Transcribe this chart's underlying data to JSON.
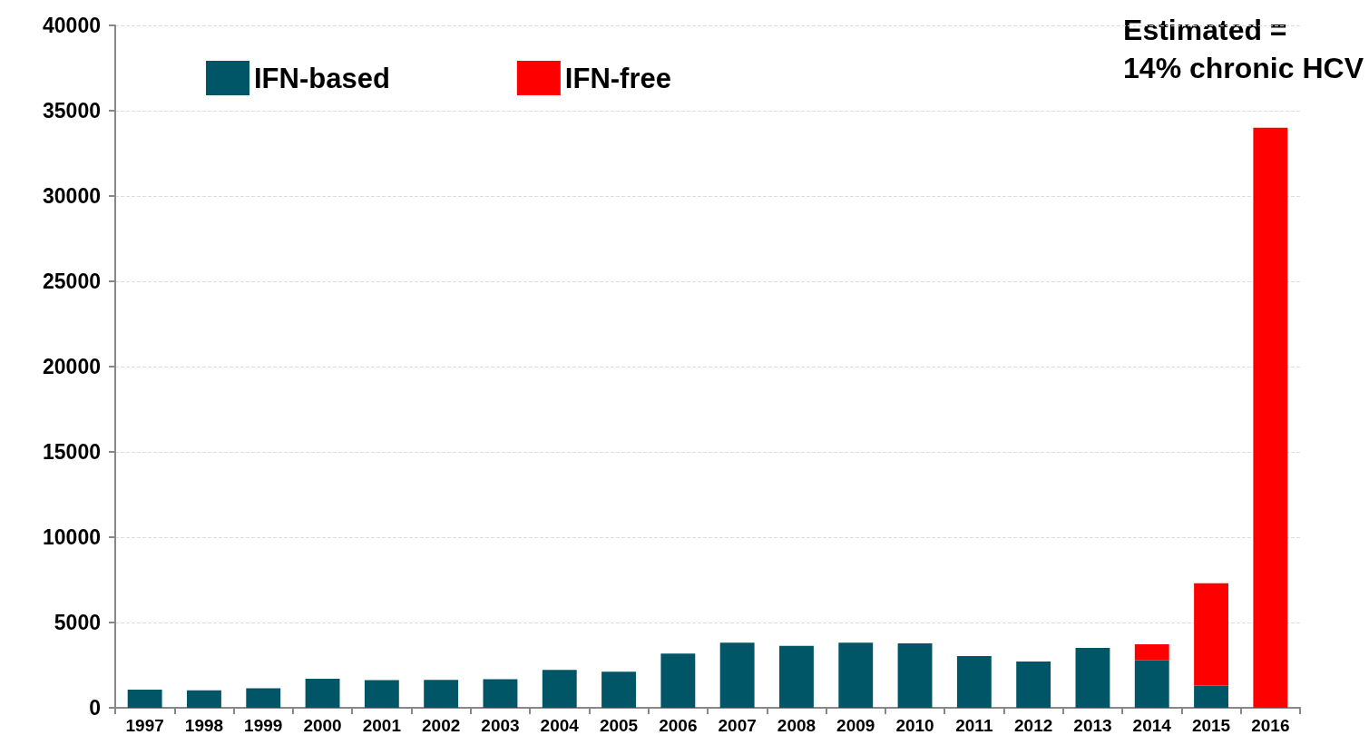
{
  "chart_data": {
    "type": "bar",
    "stacked": true,
    "categories": [
      "1997",
      "1998",
      "1999",
      "2000",
      "2001",
      "2002",
      "2003",
      "2004",
      "2005",
      "2006",
      "2007",
      "2008",
      "2009",
      "2010",
      "2011",
      "2012",
      "2013",
      "2014",
      "2015",
      "2016"
    ],
    "series": [
      {
        "name": "IFN-based",
        "color": "#005566",
        "values": [
          1070,
          1020,
          1140,
          1700,
          1620,
          1640,
          1670,
          2220,
          2120,
          3180,
          3810,
          3630,
          3820,
          3780,
          3030,
          2710,
          3510,
          2780,
          1300,
          0
        ]
      },
      {
        "name": "IFN-free",
        "color": "#ff0000",
        "values": [
          0,
          0,
          0,
          0,
          0,
          0,
          0,
          0,
          0,
          0,
          0,
          0,
          0,
          0,
          0,
          0,
          0,
          950,
          6000,
          34000
        ]
      }
    ],
    "ylim": [
      0,
      40000
    ],
    "yticks": [
      0,
      5000,
      10000,
      15000,
      20000,
      25000,
      30000,
      35000,
      40000
    ],
    "grid": "y",
    "legend": "top left",
    "annotations": [
      "Estimated =\n14% chronic HCV"
    ]
  }
}
